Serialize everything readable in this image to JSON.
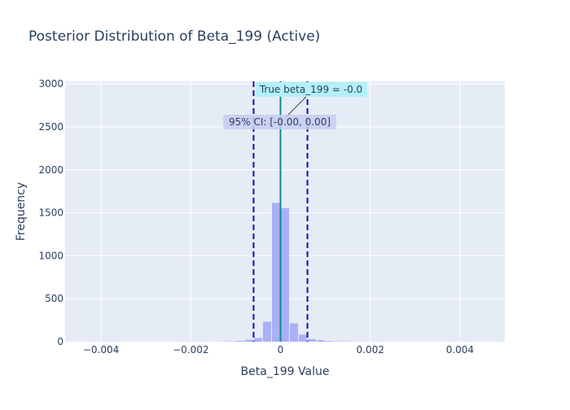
{
  "chart_data": {
    "type": "bar",
    "title": "Posterior Distribution of Beta_199 (Active)",
    "xlabel": "Beta_199 Value",
    "ylabel": "Frequency",
    "xlim": [
      -0.0048,
      0.005
    ],
    "ylim": [
      0,
      3030
    ],
    "x_ticks": [
      -0.004,
      -0.002,
      0,
      0.002,
      0.004
    ],
    "x_tick_labels": [
      "−0.004",
      "−0.002",
      "0",
      "0.002",
      "0.004"
    ],
    "y_ticks": [
      0,
      500,
      1000,
      1500,
      2000,
      2500,
      3000
    ],
    "y_tick_labels": [
      "0",
      "500",
      "1000",
      "1500",
      "2000",
      "2500",
      "3000"
    ],
    "grid": true,
    "bin_width": 0.0002,
    "bin_centers": [
      -0.0013,
      -0.0011,
      -0.0009,
      -0.0007,
      -0.0005,
      -0.0003,
      -0.0001,
      0.0001,
      0.0003,
      0.0005,
      0.0007,
      0.0009,
      0.0011,
      0.0013,
      0.0015
    ],
    "counts": [
      3,
      5,
      10,
      22,
      42,
      232,
      1615,
      1555,
      213,
      82,
      30,
      18,
      8,
      5,
      3
    ],
    "bar_color": "#aab0f6",
    "true_value": 0,
    "true_line_color": "#0e8b8b",
    "ci": [
      -0.0006,
      0.0006
    ],
    "ci_line_color": "#1010b0",
    "annotations": {
      "true_label": "True beta_199 = -0.0",
      "ci_label": "95% CI: [-0.00, 0.00]"
    },
    "colors": {
      "plot_bg": "#e5ecf6",
      "grid": "#ffffff",
      "text": "#2a3f5f",
      "true_box": "#b4f0f8",
      "ci_box": "#c8ccf0"
    }
  }
}
